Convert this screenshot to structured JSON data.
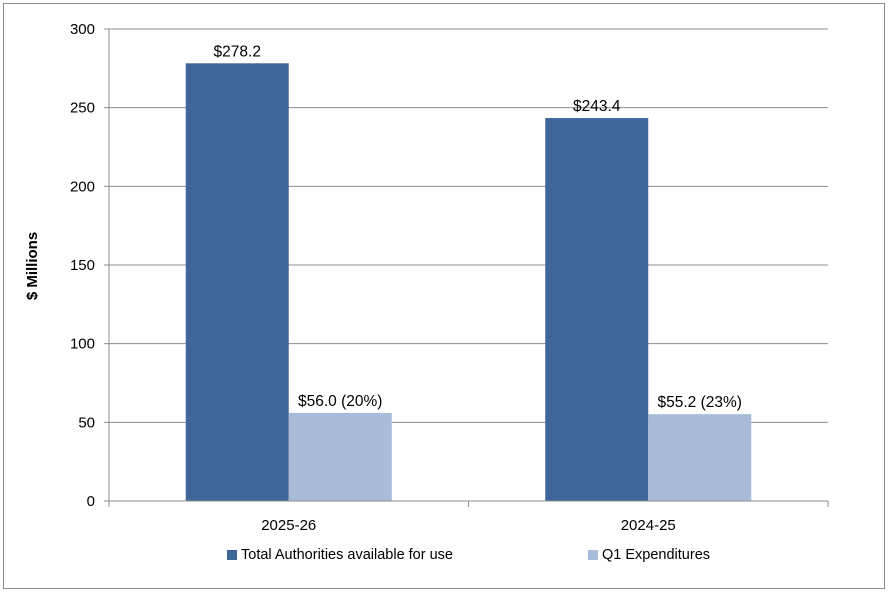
{
  "chart_data": {
    "type": "bar",
    "categories": [
      "2025-26",
      "2024-25"
    ],
    "series": [
      {
        "name": "Total Authorities available for use",
        "values": [
          278.2,
          243.4
        ],
        "color": "#3f6699",
        "labels": [
          "$278.2",
          "$243.4"
        ]
      },
      {
        "name": "Q1 Expenditures",
        "values": [
          56.0,
          55.2
        ],
        "color": "#a8bcd9",
        "labels": [
          "$56.0 (20%)",
          "$55.2 (23%)"
        ]
      }
    ],
    "ylabel": "$ Millions",
    "xlabel": "",
    "ylim": [
      0,
      300
    ],
    "yticks": [
      0,
      50,
      100,
      150,
      200,
      250,
      300
    ],
    "grid": true,
    "legend_position": "bottom"
  }
}
